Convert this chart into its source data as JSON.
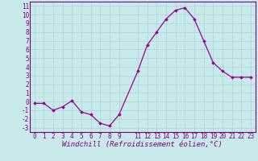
{
  "x": [
    0,
    1,
    2,
    3,
    4,
    5,
    6,
    7,
    8,
    9,
    11,
    12,
    13,
    14,
    15,
    16,
    17,
    18,
    19,
    20,
    21,
    22,
    23
  ],
  "y": [
    -0.2,
    -0.2,
    -1.0,
    -0.6,
    0.1,
    -1.2,
    -1.5,
    -2.5,
    -2.8,
    -1.5,
    3.5,
    6.5,
    8.0,
    9.5,
    10.5,
    10.8,
    9.5,
    7.0,
    4.5,
    3.5,
    2.8,
    2.8,
    2.8
  ],
  "line_color": "#990099",
  "marker": "D",
  "marker_size": 1.8,
  "linewidth": 0.9,
  "xlabel": "Windchill (Refroidissement éolien,°C)",
  "xlabel_fontsize": 6.5,
  "xlim": [
    -0.5,
    23.5
  ],
  "ylim": [
    -3.5,
    11.5
  ],
  "yticks": [
    -3,
    -2,
    -1,
    0,
    1,
    2,
    3,
    4,
    5,
    6,
    7,
    8,
    9,
    10,
    11
  ],
  "xticks": [
    0,
    1,
    2,
    3,
    4,
    5,
    6,
    7,
    8,
    9,
    11,
    12,
    13,
    14,
    15,
    16,
    17,
    18,
    19,
    20,
    21,
    22,
    23
  ],
  "tick_fontsize": 5.5,
  "grid_color": "#aad4d4",
  "background_color": "#c8eaea",
  "axes_color": "#800080",
  "spine_color": "#800080"
}
